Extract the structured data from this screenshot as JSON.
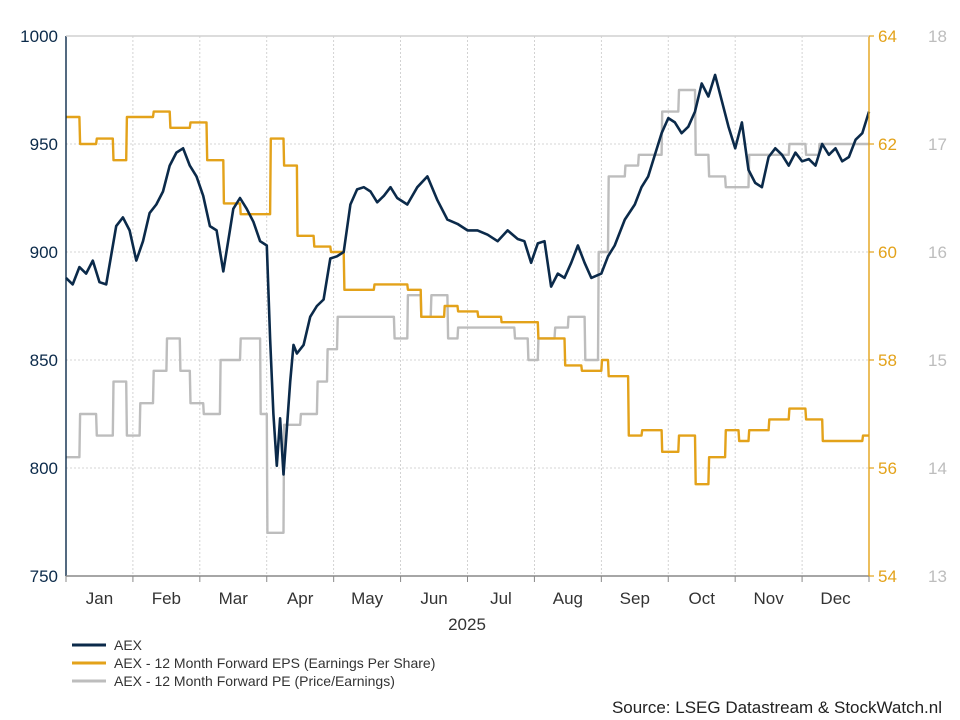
{
  "chart_data": {
    "type": "line",
    "year_label": "2025",
    "x_tick_labels": [
      "Jan",
      "Feb",
      "Mar",
      "Apr",
      "May",
      "Jun",
      "Jul",
      "Aug",
      "Sep",
      "Oct",
      "Nov",
      "Dec"
    ],
    "x_range_months": [
      0,
      12
    ],
    "grid": true,
    "legend_position": "bottom-left",
    "source": "Source: LSEG Datastream & StockWatch.nl",
    "axes": {
      "left": {
        "min": 750,
        "max": 1000,
        "ticks": [
          "750",
          "800",
          "850",
          "900",
          "950",
          "1000"
        ],
        "color": "#0b2a4a"
      },
      "eps": {
        "min": 54,
        "max": 64,
        "ticks": [
          "54",
          "56",
          "58",
          "60",
          "62",
          "64"
        ],
        "color": "#e3a21a"
      },
      "pe": {
        "min": 13,
        "max": 18,
        "ticks": [
          "13",
          "14",
          "15",
          "16",
          "17",
          "18"
        ],
        "color": "#bdbdbd"
      }
    },
    "series": [
      {
        "name": "AEX",
        "axis": "left",
        "color": "#0b2a4a",
        "x": [
          0,
          0.1,
          0.2,
          0.3,
          0.4,
          0.5,
          0.6,
          0.75,
          0.85,
          0.95,
          1.05,
          1.15,
          1.25,
          1.35,
          1.45,
          1.55,
          1.65,
          1.75,
          1.85,
          1.95,
          2.05,
          2.15,
          2.25,
          2.35,
          2.45,
          2.5,
          2.6,
          2.7,
          2.8,
          2.9,
          3.0,
          3.05,
          3.1,
          3.15,
          3.2,
          3.25,
          3.3,
          3.35,
          3.4,
          3.45,
          3.55,
          3.65,
          3.75,
          3.85,
          3.95,
          4.05,
          4.15,
          4.25,
          4.35,
          4.45,
          4.55,
          4.65,
          4.75,
          4.85,
          4.95,
          5.1,
          5.25,
          5.4,
          5.55,
          5.7,
          5.85,
          6.0,
          6.15,
          6.3,
          6.45,
          6.6,
          6.75,
          6.85,
          6.95,
          7.05,
          7.15,
          7.25,
          7.35,
          7.45,
          7.55,
          7.65,
          7.75,
          7.85,
          8.0,
          8.1,
          8.2,
          8.35,
          8.5,
          8.6,
          8.7,
          8.8,
          8.9,
          9.0,
          9.1,
          9.2,
          9.3,
          9.4,
          9.5,
          9.6,
          9.7,
          9.8,
          9.9,
          10.0,
          10.1,
          10.2,
          10.3,
          10.4,
          10.5,
          10.6,
          10.7,
          10.8,
          10.9,
          11.0,
          11.1,
          11.2,
          11.3,
          11.4,
          11.5,
          11.6,
          11.7,
          11.8,
          11.9,
          12.0
        ],
        "values": [
          888,
          885,
          893,
          890,
          896,
          886,
          885,
          912,
          916,
          910,
          896,
          905,
          918,
          922,
          928,
          940,
          946,
          948,
          940,
          935,
          926,
          912,
          910,
          891,
          910,
          920,
          925,
          920,
          914,
          905,
          903,
          860,
          825,
          801,
          823,
          797,
          818,
          840,
          857,
          853,
          857,
          870,
          875,
          878,
          897,
          898,
          900,
          922,
          929,
          930,
          928,
          923,
          926,
          930,
          925,
          922,
          930,
          935,
          924,
          915,
          913,
          910,
          910,
          908,
          905,
          910,
          906,
          905,
          895,
          904,
          905,
          884,
          890,
          888,
          895,
          903,
          895,
          888,
          890,
          898,
          903,
          915,
          922,
          930,
          935,
          945,
          955,
          962,
          960,
          955,
          958,
          965,
          978,
          972,
          982,
          970,
          958,
          948,
          960,
          938,
          932,
          930,
          944,
          948,
          945,
          940,
          946,
          942,
          943,
          940,
          950,
          945,
          948,
          942,
          944,
          952,
          955,
          965
        ]
      },
      {
        "name": "AEX - 12 Month Forward EPS (Earnings Per Share)",
        "axis": "eps",
        "color": "#e3a21a",
        "x": [
          0,
          0.2,
          0.21,
          0.45,
          0.46,
          0.7,
          0.71,
          0.9,
          0.91,
          1.3,
          1.31,
          1.55,
          1.56,
          1.85,
          1.86,
          2.1,
          2.11,
          2.35,
          2.36,
          2.6,
          2.61,
          3.05,
          3.06,
          3.25,
          3.26,
          3.45,
          3.46,
          3.7,
          3.71,
          3.95,
          3.96,
          4.15,
          4.16,
          4.6,
          4.61,
          5.1,
          5.11,
          5.3,
          5.31,
          5.65,
          5.66,
          5.85,
          5.86,
          6.15,
          6.16,
          6.5,
          6.51,
          6.8,
          6.81,
          7.05,
          7.06,
          7.45,
          7.46,
          7.7,
          7.71,
          8.0,
          8.01,
          8.1,
          8.11,
          8.4,
          8.41,
          8.6,
          8.61,
          8.9,
          8.91,
          9.15,
          9.16,
          9.4,
          9.41,
          9.6,
          9.61,
          9.85,
          9.86,
          10.05,
          10.06,
          10.2,
          10.21,
          10.5,
          10.51,
          10.8,
          10.81,
          11.05,
          11.06,
          11.3,
          11.31,
          11.6,
          11.61,
          11.9,
          11.91,
          12.0
        ],
        "values": [
          62.5,
          62.5,
          62.0,
          62.0,
          62.1,
          62.1,
          61.7,
          61.7,
          62.5,
          62.5,
          62.6,
          62.6,
          62.3,
          62.3,
          62.4,
          62.4,
          61.7,
          61.7,
          60.9,
          60.9,
          60.7,
          60.7,
          62.1,
          62.1,
          61.6,
          61.6,
          60.3,
          60.3,
          60.1,
          60.1,
          60.0,
          60.0,
          59.3,
          59.3,
          59.4,
          59.4,
          59.3,
          59.3,
          58.8,
          58.8,
          59.0,
          59.0,
          58.9,
          58.9,
          58.8,
          58.8,
          58.7,
          58.7,
          58.7,
          58.7,
          58.4,
          58.4,
          57.9,
          57.9,
          57.8,
          57.8,
          58.0,
          58.0,
          57.7,
          57.7,
          56.6,
          56.6,
          56.7,
          56.7,
          56.3,
          56.3,
          56.6,
          56.6,
          55.7,
          55.7,
          56.2,
          56.2,
          56.7,
          56.7,
          56.5,
          56.5,
          56.7,
          56.7,
          56.9,
          56.9,
          57.1,
          57.1,
          56.9,
          56.9,
          56.5,
          56.5,
          56.5,
          56.5,
          56.6,
          56.6
        ]
      },
      {
        "name": "AEX - 12 Month Forward PE (Price/Earnings)",
        "axis": "pe",
        "color": "#bdbdbd",
        "x": [
          0,
          0.2,
          0.21,
          0.45,
          0.46,
          0.7,
          0.71,
          0.9,
          0.91,
          1.1,
          1.11,
          1.3,
          1.31,
          1.5,
          1.51,
          1.7,
          1.71,
          1.85,
          1.86,
          2.05,
          2.06,
          2.3,
          2.31,
          2.6,
          2.61,
          2.9,
          2.91,
          3.0,
          3.01,
          3.25,
          3.26,
          3.3,
          3.31,
          3.5,
          3.51,
          3.75,
          3.76,
          3.9,
          3.91,
          4.05,
          4.06,
          4.3,
          4.31,
          4.45,
          4.46,
          4.65,
          4.66,
          4.9,
          4.91,
          5.1,
          5.11,
          5.3,
          5.31,
          5.45,
          5.46,
          5.7,
          5.71,
          5.85,
          5.86,
          6.05,
          6.06,
          6.25,
          6.26,
          6.45,
          6.46,
          6.7,
          6.71,
          6.9,
          6.91,
          7.05,
          7.06,
          7.3,
          7.31,
          7.5,
          7.51,
          7.75,
          7.76,
          7.95,
          7.96,
          8.1,
          8.11,
          8.35,
          8.36,
          8.55,
          8.56,
          8.75,
          8.76,
          8.9,
          8.91,
          9.15,
          9.16,
          9.4,
          9.41,
          9.6,
          9.61,
          9.85,
          9.86,
          10.05,
          10.06,
          10.2,
          10.21,
          10.35,
          10.36,
          10.55,
          10.56,
          10.8,
          10.81,
          11.05,
          11.06,
          11.25,
          11.26,
          11.5,
          11.51,
          11.75,
          11.76,
          12.0
        ],
        "values": [
          14.1,
          14.1,
          14.5,
          14.5,
          14.3,
          14.3,
          14.8,
          14.8,
          14.3,
          14.3,
          14.6,
          14.6,
          14.9,
          14.9,
          15.2,
          15.2,
          14.9,
          14.9,
          14.6,
          14.6,
          14.5,
          14.5,
          15.0,
          15.0,
          15.2,
          15.2,
          14.5,
          14.5,
          13.4,
          13.4,
          14.4,
          14.4,
          14.4,
          14.4,
          14.5,
          14.5,
          14.8,
          14.8,
          15.1,
          15.1,
          15.4,
          15.4,
          15.4,
          15.4,
          15.4,
          15.4,
          15.4,
          15.4,
          15.2,
          15.2,
          15.6,
          15.6,
          15.4,
          15.4,
          15.6,
          15.6,
          15.2,
          15.2,
          15.3,
          15.3,
          15.3,
          15.3,
          15.3,
          15.3,
          15.3,
          15.3,
          15.2,
          15.2,
          15.0,
          15.0,
          15.2,
          15.2,
          15.3,
          15.3,
          15.4,
          15.4,
          15.0,
          15.0,
          16.0,
          16.0,
          16.7,
          16.7,
          16.8,
          16.8,
          16.9,
          16.9,
          16.9,
          16.9,
          17.3,
          17.3,
          17.5,
          17.5,
          16.9,
          16.9,
          16.7,
          16.7,
          16.6,
          16.6,
          16.6,
          16.6,
          16.9,
          16.9,
          16.9,
          16.9,
          16.9,
          16.9,
          17.0,
          17.0,
          16.9,
          16.9,
          17.0,
          17.0,
          17.0,
          17.0,
          17.0,
          17.0
        ]
      }
    ]
  }
}
